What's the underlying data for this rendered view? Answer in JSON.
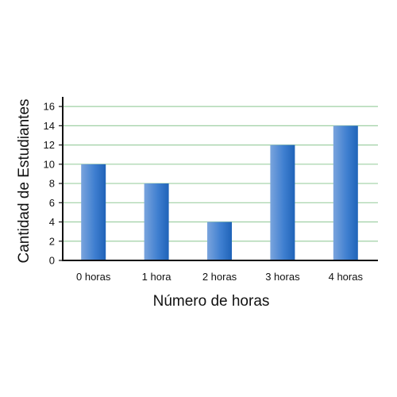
{
  "chart_data": {
    "type": "bar",
    "title": "",
    "xlabel": "Número de horas",
    "ylabel": "Cantidad de Estudiantes",
    "categories": [
      "0 horas",
      "1 hora",
      "2 horas",
      "3 horas",
      "4 horas"
    ],
    "values": [
      10,
      8,
      4,
      12,
      14
    ],
    "ylim": [
      0,
      17
    ],
    "yticks": [
      0,
      2,
      4,
      6,
      8,
      10,
      12,
      14,
      16
    ],
    "grid": "horizontal",
    "legend": "none",
    "colors": {
      "bar_light": "#7aa4dd",
      "bar_mid": "#3f7fd0",
      "bar_dark": "#1f63b8",
      "grid": "#9fd0a4",
      "axis": "#111111"
    }
  }
}
